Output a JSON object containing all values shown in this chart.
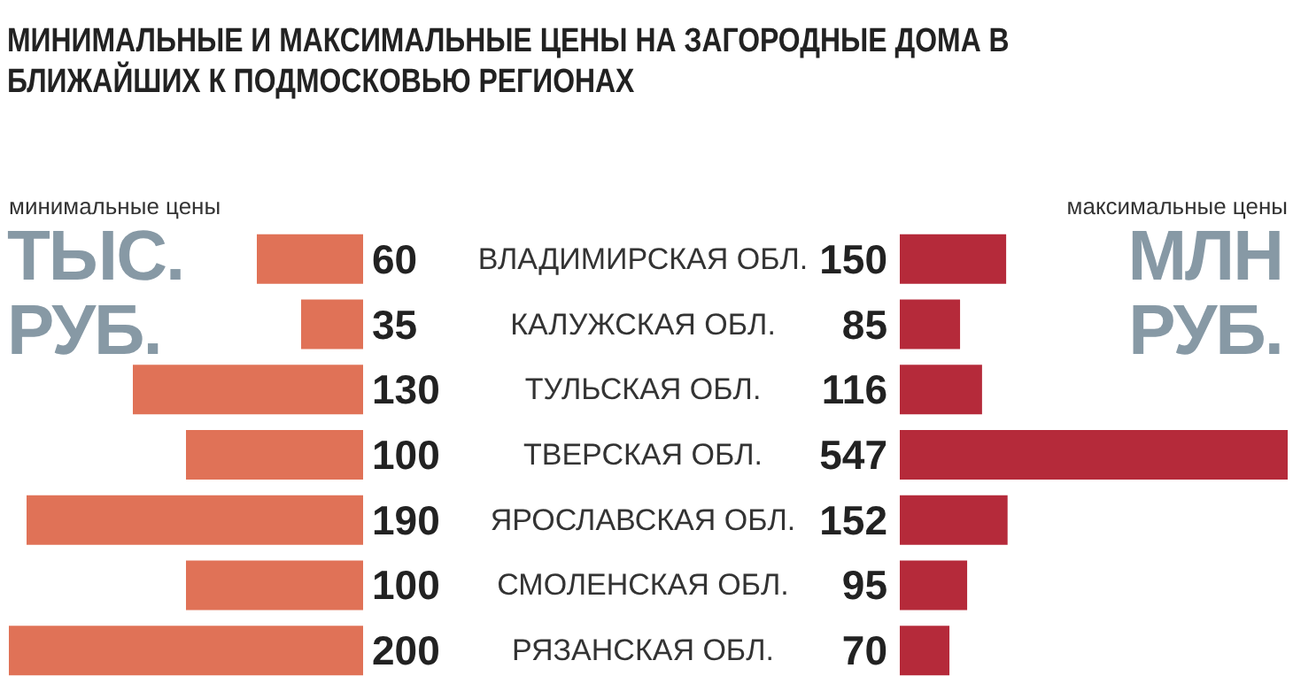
{
  "chart_data": [
    {
      "type": "bar",
      "orientation": "horizontal",
      "title": "МИНИМАЛЬНЫЕ И МАКСИМАЛЬНЫЕ ЦЕНЫ НА ЗАГОРОДНЫЕ ДОМА В БЛИЖАЙШИХ К ПОДМОСКОВЬЮ РЕГИОНАХ",
      "subtitle": "минимальные цены",
      "xlabel": "ТЫС. РУБ.",
      "categories": [
        "ВЛАДИМИРСКАЯ ОБЛ.",
        "КАЛУЖСКАЯ ОБЛ.",
        "ТУЛЬСКАЯ ОБЛ.",
        "ТВЕРСКАЯ ОБЛ.",
        "ЯРОСЛАВСКАЯ ОБЛ.",
        "СМОЛЕНСКАЯ ОБЛ.",
        "РЯЗАНСКАЯ ОБЛ."
      ],
      "values": [
        60,
        35,
        130,
        100,
        190,
        100,
        200
      ],
      "color": "#e07257",
      "data_labels": true
    },
    {
      "type": "bar",
      "orientation": "horizontal",
      "subtitle": "максимальные цены",
      "xlabel": "МЛН РУБ.",
      "categories": [
        null,
        null,
        null,
        null,
        null,
        null,
        null
      ],
      "values": [
        150,
        85,
        116,
        547,
        152,
        95,
        70
      ],
      "color": "#b52a3a",
      "data_labels": true
    }
  ]
}
